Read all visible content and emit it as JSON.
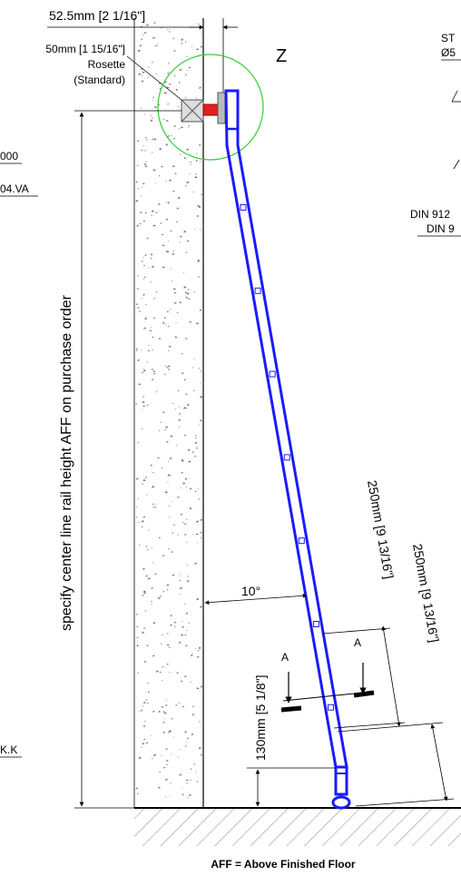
{
  "top_dimension": "52.5mm [2 1/16\"]",
  "rosette": {
    "size": "50mm [1 15/16\"]",
    "name": "Rosette",
    "note": "(Standard)"
  },
  "detail_label": "Z",
  "right_notes": {
    "line1": "ST",
    "line2": "Ø5",
    "line3": "DIN 912",
    "line4": "DIN 9"
  },
  "left_notes": {
    "line1": "000",
    "line2": "04.VA",
    "line3": "K.K"
  },
  "vertical_label": "specify center line rail height AFF on purchase order",
  "angle_label": "10°",
  "dim_250_a": "250mm [9 13/16\"]",
  "dim_250_b": "250mm [9 13/16\"]",
  "dim_130": "130mm [5 1/8\"]",
  "section_marks": [
    "A",
    "A"
  ],
  "footer": "AFF = Above Finished Floor",
  "colors": {
    "rail": "#1a1aff",
    "rosette": "#e02020",
    "detail_circle": "#33cc33",
    "line": "#000000"
  }
}
